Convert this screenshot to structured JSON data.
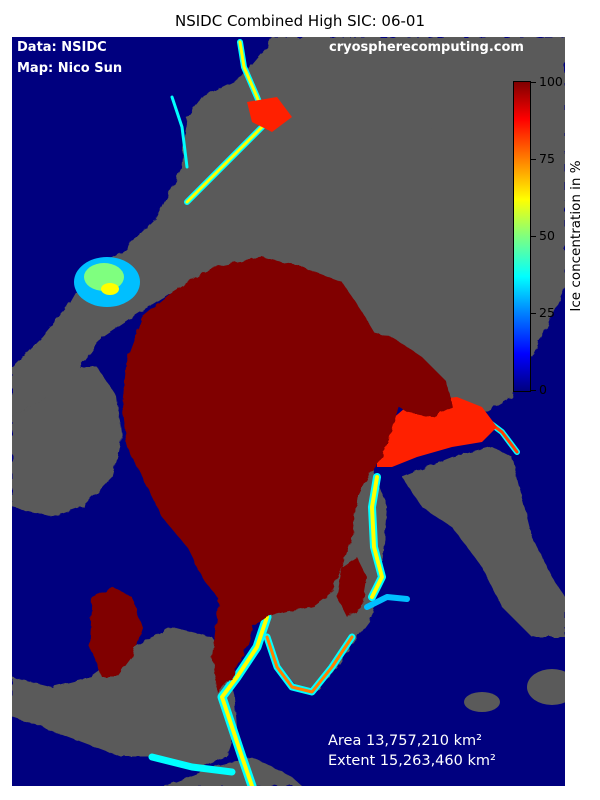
{
  "title": "NSIDC Combined High SIC: 06-01",
  "credits": {
    "data": "Data: NSIDC",
    "map": "Map: Nico Sun",
    "site": "cryospherecomputing.com"
  },
  "stats": {
    "area": "Area 13,757,210 km²",
    "extent": "Extent 15,263,460 km²"
  },
  "colorbar": {
    "label": "Ice concentration in %",
    "ticks": [
      "0",
      "25",
      "50",
      "75",
      "100"
    ],
    "range": [
      0,
      100
    ],
    "colormap": "jet"
  },
  "colors": {
    "ocean": "#00007f",
    "land": "#5a5a5a",
    "ice_full": "#800000"
  }
}
